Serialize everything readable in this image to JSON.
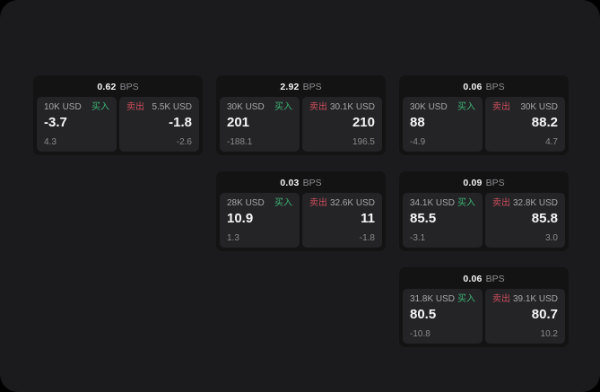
{
  "labels": {
    "buy": "买入",
    "sell": "卖出",
    "bps_unit": "BPS"
  },
  "colors": {
    "buy": "#3cb476",
    "sell": "#cc4e5c",
    "surface": "#1b1b1d",
    "card": "#131314",
    "subpanel": "#242427"
  },
  "cards": [
    {
      "bps": "0.62",
      "buy": {
        "amount": "10K USD",
        "value": "-3.7",
        "change": "4.3"
      },
      "sell": {
        "amount": "5.5K USD",
        "value": "-1.8",
        "change": "-2.6"
      }
    },
    {
      "bps": "2.92",
      "buy": {
        "amount": "30K USD",
        "value": "201",
        "change": "-188.1"
      },
      "sell": {
        "amount": "30.1K USD",
        "value": "210",
        "change": "196.5"
      }
    },
    {
      "bps": "0.06",
      "buy": {
        "amount": "30K USD",
        "value": "88",
        "change": "-4.9"
      },
      "sell": {
        "amount": "30K USD",
        "value": "88.2",
        "change": "4.7"
      }
    },
    {
      "bps": "0.03",
      "buy": {
        "amount": "28K USD",
        "value": "10.9",
        "change": "1.3"
      },
      "sell": {
        "amount": "32.6K USD",
        "value": "11",
        "change": "-1.8"
      }
    },
    {
      "bps": "0.09",
      "buy": {
        "amount": "34.1K USD",
        "value": "85.5",
        "change": "-3.1"
      },
      "sell": {
        "amount": "32.8K USD",
        "value": "85.8",
        "change": "3.0"
      }
    },
    {
      "bps": "0.06",
      "buy": {
        "amount": "31.8K USD",
        "value": "80.5",
        "change": "-10.8"
      },
      "sell": {
        "amount": "39.1K USD",
        "value": "80.7",
        "change": "10.2"
      }
    }
  ]
}
